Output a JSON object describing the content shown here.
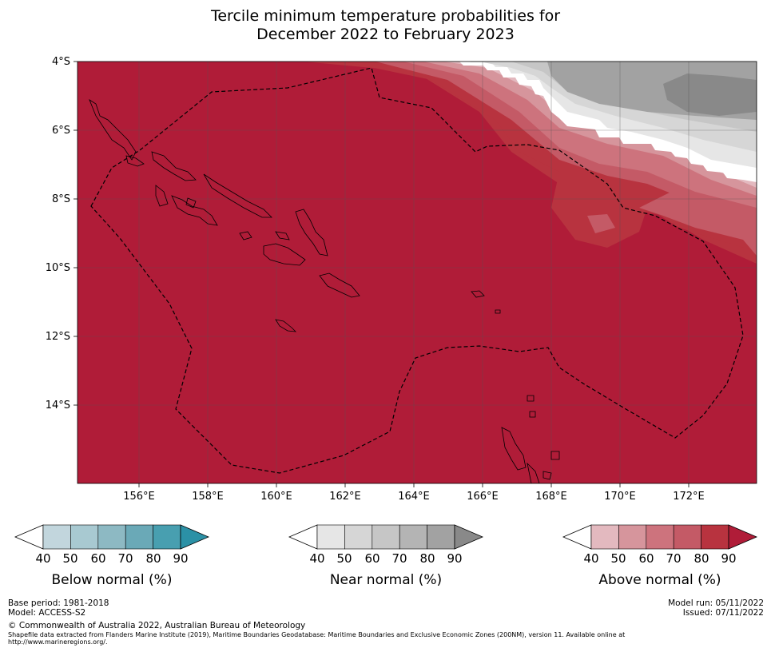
{
  "title": {
    "line1": "Tercile minimum temperature probabilities for",
    "line2": "December 2022 to February 2023"
  },
  "map": {
    "lat_labels": [
      "4°S",
      "6°S",
      "8°S",
      "10°S",
      "12°S",
      "14°S"
    ],
    "lon_labels": [
      "156°E",
      "158°E",
      "160°E",
      "162°E",
      "164°E",
      "166°E",
      "168°E",
      "170°E",
      "172°E"
    ],
    "lon_range": [
      154.2,
      174.0
    ],
    "lat_range": [
      -4.0,
      -16.3
    ]
  },
  "colorbars": {
    "below": {
      "title": "Below normal (%)",
      "ticks": [
        "40",
        "50",
        "60",
        "70",
        "80",
        "90"
      ],
      "colors": [
        "#c2d6dd",
        "#a8c9d1",
        "#8db9c3",
        "#6aa9b7",
        "#489fb0",
        "#2b91a6"
      ]
    },
    "near": {
      "title": "Near normal (%)",
      "ticks": [
        "40",
        "50",
        "60",
        "70",
        "80",
        "90"
      ],
      "colors": [
        "#e6e6e6",
        "#d6d6d6",
        "#c6c6c6",
        "#b4b4b4",
        "#a2a2a2",
        "#898989"
      ]
    },
    "above": {
      "title": "Above normal (%)",
      "ticks": [
        "40",
        "50",
        "60",
        "70",
        "80",
        "90"
      ],
      "colors": [
        "#e3b9bf",
        "#d6959c",
        "#cd737d",
        "#c45a66",
        "#b8333f",
        "#b01c38"
      ]
    }
  },
  "footer": {
    "base_period": "Base period: 1981-2018",
    "model": "Model: ACCESS-S2",
    "model_run": "Model run: 05/11/2022",
    "issued": "Issued: 07/11/2022",
    "copyright": "© Commonwealth of Australia 2022, Australian Bureau of Meteorology",
    "shapefile_line1": "Shapefile data extracted from Flanders Marine Institute (2019), Maritime Boundaries Geodatabase: Maritime Boundaries and Exclusive Economic Zones (200NM), version 11. Available online at",
    "shapefile_line2": "http://www.marineregions.org/."
  }
}
